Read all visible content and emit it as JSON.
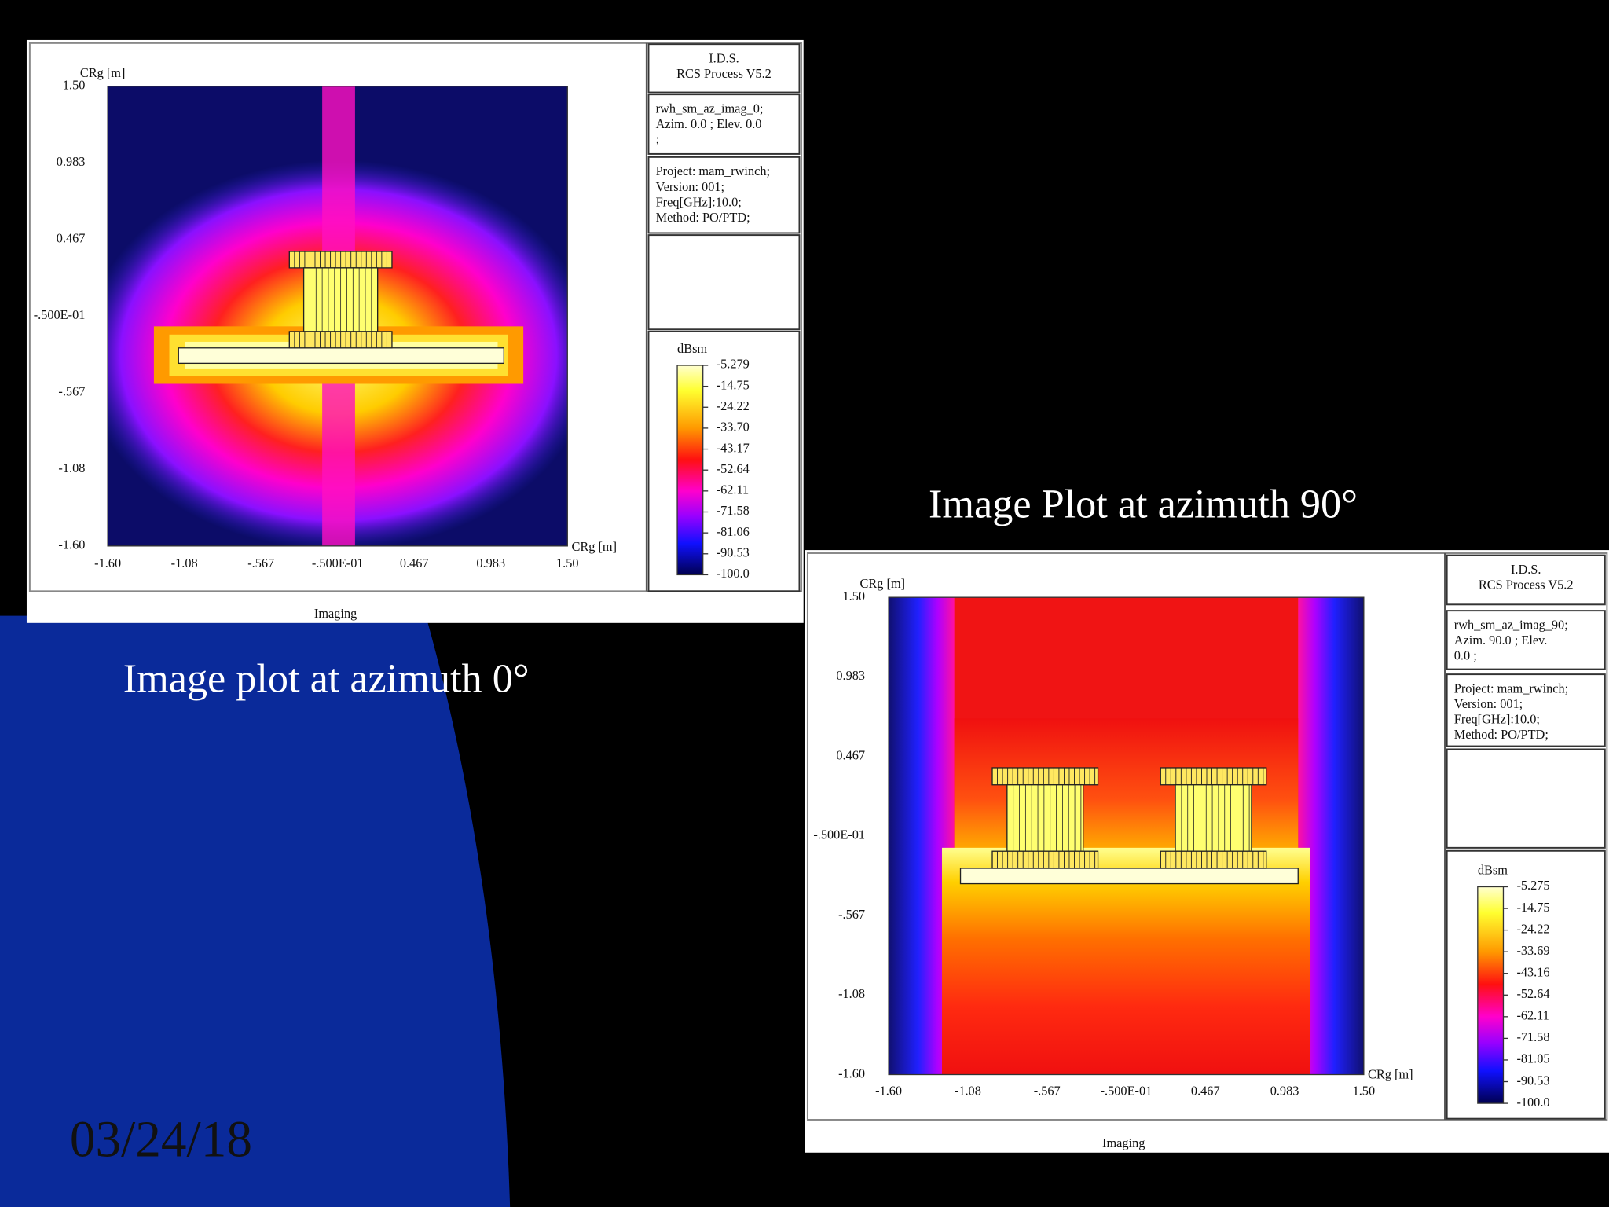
{
  "slide": {
    "date": "03/24/18",
    "captions": [
      "Image plot at azimuth 0°",
      "Image Plot at azimuth 90°"
    ]
  },
  "plots": [
    {
      "header": [
        "I.D.S.",
        "RCS Process V5.2"
      ],
      "case": [
        "rwh_sm_az_imag_0;",
        "Azim. 0.0 ; Elev. 0.0",
        ";"
      ],
      "project": [
        "Project: mam_rwinch;",
        "Version: 001;",
        "Freq[GHz]:10.0;",
        "Method: PO/PTD;"
      ],
      "y_label": "CRg [m]",
      "y_ticks": [
        "1.50",
        "0.983",
        "0.467",
        "-.500E-01",
        "-.567",
        "-1.08",
        "-1.60"
      ],
      "x_label": "CRg [m]",
      "x_ticks": [
        "-1.60",
        "-1.08",
        "-.567",
        "-.500E-01",
        "0.467",
        "0.983",
        "1.50"
      ],
      "footer": "Imaging",
      "colorbar": {
        "unit": "dBsm",
        "ticks": [
          "-5.279",
          "-14.75",
          "-24.22",
          "-33.70",
          "-43.17",
          "-52.64",
          "-62.11",
          "-71.58",
          "-81.06",
          "-90.53",
          "-100.0"
        ]
      }
    },
    {
      "header": [
        "I.D.S.",
        "RCS Process V5.2"
      ],
      "case": [
        "rwh_sm_az_imag_90;",
        "Azim. 90.0 ; Elev.",
        "0.0 ;"
      ],
      "project": [
        "Project: mam_rwinch;",
        "Version: 001;",
        "Freq[GHz]:10.0;",
        "Method: PO/PTD;"
      ],
      "y_label": "CRg [m]",
      "y_ticks": [
        "1.50",
        "0.983",
        "0.467",
        "-.500E-01",
        "-.567",
        "-1.08",
        "-1.60"
      ],
      "x_label": "CRg [m]",
      "x_ticks": [
        "-1.60",
        "-1.08",
        "-.567",
        "-.500E-01",
        "0.467",
        "0.983",
        "1.50"
      ],
      "footer": "Imaging",
      "colorbar": {
        "unit": "dBsm",
        "ticks": [
          "-5.275",
          "-14.75",
          "-24.22",
          "-33.69",
          "-43.16",
          "-52.64",
          "-62.11",
          "-71.58",
          "-81.05",
          "-90.53",
          "-100.0"
        ]
      }
    }
  ]
}
